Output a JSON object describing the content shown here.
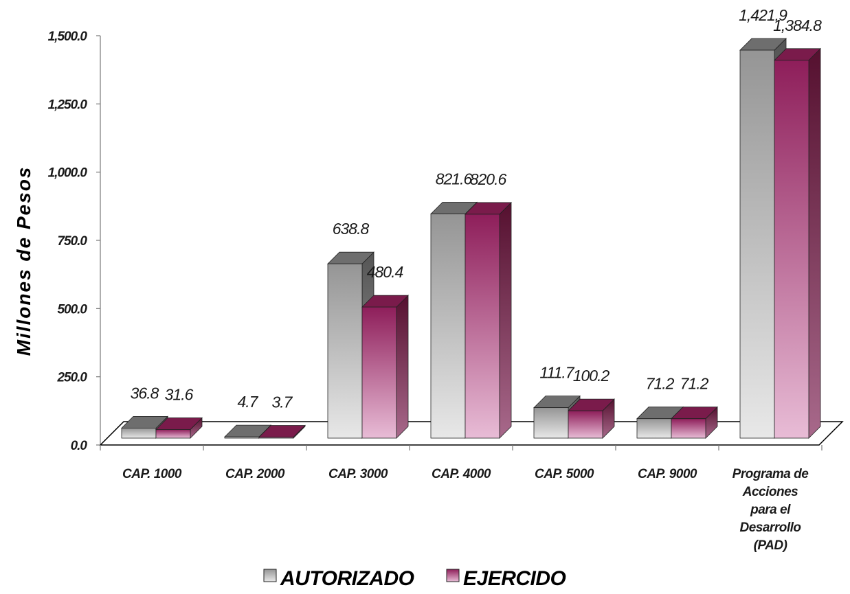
{
  "chart_data": {
    "type": "bar",
    "categories": [
      [
        "CAP. 1000"
      ],
      [
        "CAP. 2000"
      ],
      [
        "CAP. 3000"
      ],
      [
        "CAP. 4000"
      ],
      [
        "CAP. 5000"
      ],
      [
        "CAP. 9000"
      ],
      [
        "Programa de",
        "Acciones",
        "para el",
        "Desarrollo",
        "(PAD)"
      ]
    ],
    "series": [
      {
        "name": "AUTORIZADO",
        "values": [
          36.8,
          4.7,
          638.8,
          821.6,
          111.7,
          71.2,
          1421.9
        ],
        "labels": [
          "36.8",
          "4.7",
          "638.8",
          "821.6",
          "111.7",
          "71.2",
          "1,421.9"
        ],
        "color_top": "#e4e4e4",
        "color_mid": "#9a9a9a",
        "color_side": "#5a5a5a"
      },
      {
        "name": "EJERCIDO",
        "values": [
          31.6,
          3.7,
          480.4,
          820.6,
          100.2,
          71.2,
          1384.8
        ],
        "labels": [
          "31.6",
          "3.7",
          "480.4",
          "820.6",
          "100.2",
          "71.2",
          "1,384.8"
        ],
        "color_top": "#e6b9d4",
        "color_mid": "#8c1f58",
        "color_side": "#5a1236"
      }
    ],
    "ylabel": "Millones de Pesos",
    "xlabel": "",
    "ylim": [
      0,
      1500
    ],
    "yticks": [
      "0.0",
      "250.0",
      "500.0",
      "750.0",
      "1,000.0",
      "1,250.0",
      "1,500.0"
    ],
    "ytick_values": [
      0,
      250,
      500,
      750,
      1000,
      1250,
      1500
    ],
    "grid": false,
    "legend_position": "bottom-center",
    "style": "3d-column"
  }
}
